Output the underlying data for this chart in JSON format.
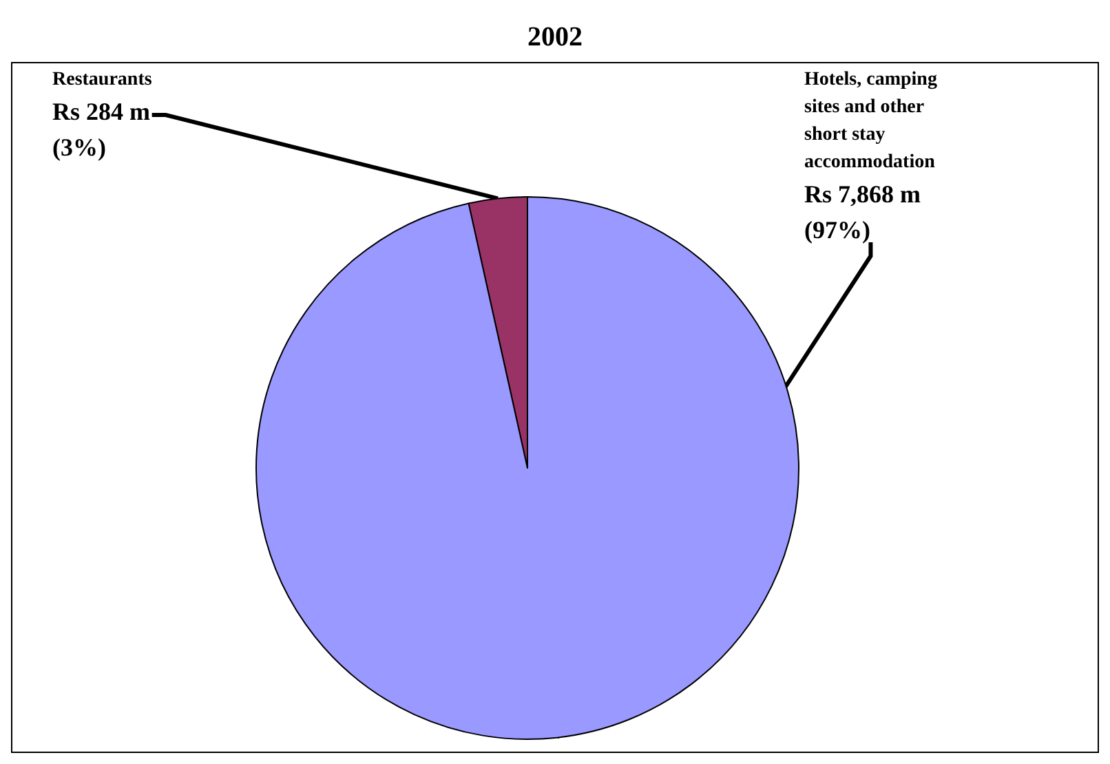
{
  "chart_data": {
    "type": "pie",
    "title": "2002",
    "categories": [
      "Restaurants",
      "Hotels, camping sites and other short stay accommodation"
    ],
    "values": [
      284,
      7868
    ],
    "value_labels": [
      "Rs 284 m (3%)",
      "Rs 7,868 m (97%)"
    ],
    "colors": [
      "#993366",
      "#9999ff"
    ]
  }
}
